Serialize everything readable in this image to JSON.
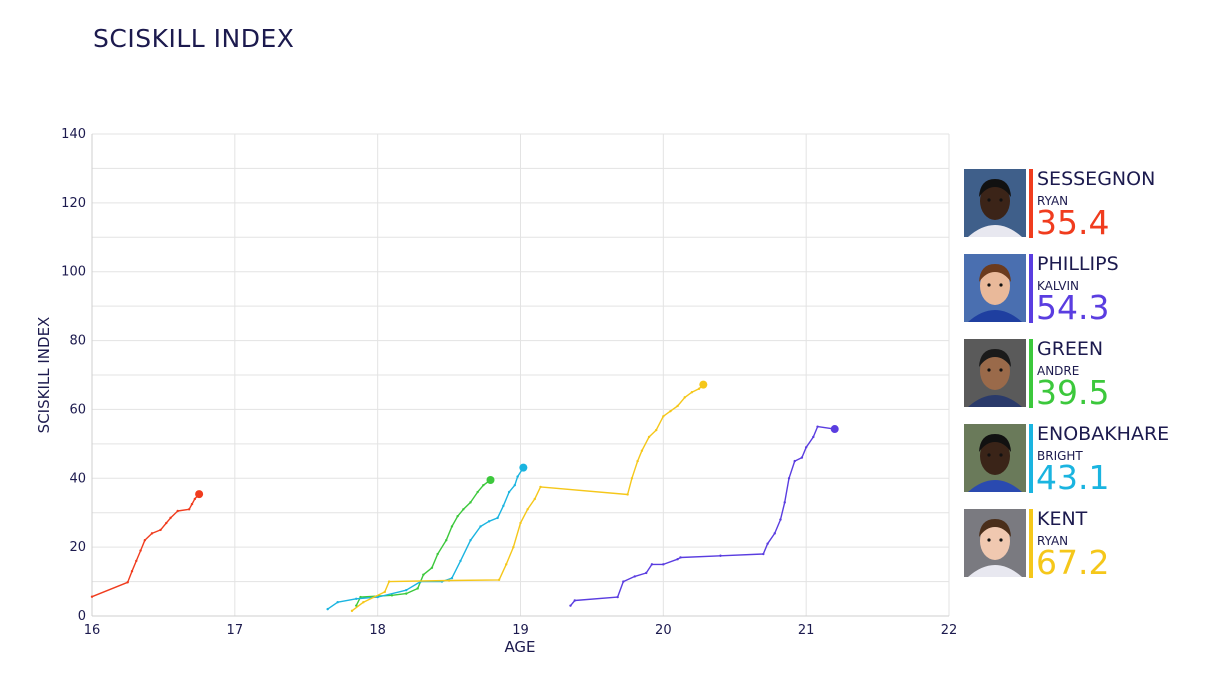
{
  "page": {
    "title": "SCISKILL INDEX"
  },
  "chart_data": {
    "type": "line",
    "title": "SCISKILL INDEX",
    "xlabel": "AGE",
    "ylabel": "SCISKILL INDEX",
    "xlim": [
      16,
      22
    ],
    "ylim": [
      0,
      140
    ],
    "x_ticks": [
      16,
      17,
      18,
      19,
      20,
      21,
      22
    ],
    "y_ticks": [
      0,
      20,
      40,
      60,
      80,
      100,
      120,
      140
    ],
    "grid": true,
    "legend_position": "right",
    "series": [
      {
        "name": "SESSEGNON",
        "color": "#f03c1e",
        "points": [
          [
            16.0,
            5.6
          ],
          [
            16.25,
            9.8
          ],
          [
            16.28,
            13
          ],
          [
            16.31,
            16
          ],
          [
            16.34,
            19
          ],
          [
            16.37,
            22
          ],
          [
            16.42,
            24
          ],
          [
            16.48,
            25
          ],
          [
            16.52,
            27
          ],
          [
            16.55,
            28.5
          ],
          [
            16.6,
            30.5
          ],
          [
            16.68,
            31
          ],
          [
            16.7,
            32.5
          ],
          [
            16.72,
            34
          ],
          [
            16.75,
            35.4
          ]
        ]
      },
      {
        "name": "PHILLIPS",
        "color": "#5a3de0",
        "points": [
          [
            19.35,
            3
          ],
          [
            19.38,
            4.5
          ],
          [
            19.68,
            5.5
          ],
          [
            19.72,
            10
          ],
          [
            19.8,
            11.5
          ],
          [
            19.88,
            12.5
          ],
          [
            19.92,
            15
          ],
          [
            20.0,
            15
          ],
          [
            20.1,
            16.5
          ],
          [
            20.12,
            17
          ],
          [
            20.4,
            17.5
          ],
          [
            20.7,
            18
          ],
          [
            20.73,
            21
          ],
          [
            20.78,
            24
          ],
          [
            20.82,
            28
          ],
          [
            20.85,
            33
          ],
          [
            20.88,
            40
          ],
          [
            20.92,
            45
          ],
          [
            20.97,
            46
          ],
          [
            21.0,
            49
          ],
          [
            21.05,
            52
          ],
          [
            21.08,
            55
          ],
          [
            21.2,
            54.3
          ]
        ]
      },
      {
        "name": "GREEN",
        "color": "#3cc83c",
        "points": [
          [
            17.85,
            3
          ],
          [
            17.88,
            5.5
          ],
          [
            18.1,
            6
          ],
          [
            18.2,
            6.5
          ],
          [
            18.28,
            8
          ],
          [
            18.32,
            12
          ],
          [
            18.38,
            14
          ],
          [
            18.42,
            18
          ],
          [
            18.48,
            22
          ],
          [
            18.52,
            26
          ],
          [
            18.56,
            29
          ],
          [
            18.6,
            31
          ],
          [
            18.65,
            33
          ],
          [
            18.7,
            36
          ],
          [
            18.74,
            38
          ],
          [
            18.79,
            39.5
          ]
        ]
      },
      {
        "name": "ENOBAKHARE",
        "color": "#1ab4e0",
        "points": [
          [
            17.65,
            2
          ],
          [
            17.72,
            4
          ],
          [
            17.85,
            5
          ],
          [
            18.0,
            5.5
          ],
          [
            18.2,
            7.5
          ],
          [
            18.3,
            10
          ],
          [
            18.45,
            10
          ],
          [
            18.52,
            11
          ],
          [
            18.58,
            16
          ],
          [
            18.65,
            22
          ],
          [
            18.72,
            26
          ],
          [
            18.78,
            27.5
          ],
          [
            18.84,
            28.5
          ],
          [
            18.88,
            32
          ],
          [
            18.92,
            36
          ],
          [
            18.96,
            38
          ],
          [
            18.98,
            40.5
          ],
          [
            19.02,
            43.1
          ]
        ]
      },
      {
        "name": "KENT",
        "color": "#f5c71a",
        "points": [
          [
            17.82,
            1.5
          ],
          [
            17.9,
            4
          ],
          [
            18.05,
            7
          ],
          [
            18.08,
            10
          ],
          [
            18.5,
            10.3
          ],
          [
            18.85,
            10.5
          ],
          [
            18.9,
            15
          ],
          [
            18.95,
            20
          ],
          [
            19.0,
            27
          ],
          [
            19.05,
            31
          ],
          [
            19.1,
            34
          ],
          [
            19.14,
            37.5
          ],
          [
            19.75,
            35.3
          ],
          [
            19.78,
            40
          ],
          [
            19.82,
            45
          ],
          [
            19.85,
            48
          ],
          [
            19.9,
            52
          ],
          [
            19.95,
            54
          ],
          [
            20.0,
            58
          ],
          [
            20.05,
            59.5
          ],
          [
            20.1,
            61
          ],
          [
            20.15,
            63.5
          ],
          [
            20.2,
            65
          ],
          [
            20.25,
            66
          ],
          [
            20.28,
            67.2
          ]
        ]
      }
    ]
  },
  "legend": [
    {
      "last_name": "SESSEGNON",
      "first_name": "RYAN",
      "score": "35.4",
      "color": "#f03c1e",
      "icon": "player-photo-icon"
    },
    {
      "last_name": "PHILLIPS",
      "first_name": "KALVIN",
      "score": "54.3",
      "color": "#5a3de0",
      "icon": "player-photo-icon"
    },
    {
      "last_name": "GREEN",
      "first_name": "ANDRE",
      "score": "39.5",
      "color": "#3cc83c",
      "icon": "player-photo-icon"
    },
    {
      "last_name": "ENOBAKHARE",
      "first_name": "BRIGHT",
      "score": "43.1",
      "color": "#1ab4e0",
      "icon": "player-photo-icon"
    },
    {
      "last_name": "KENT",
      "first_name": "RYAN",
      "score": "67.2",
      "color": "#f5c71a",
      "icon": "player-photo-icon"
    }
  ]
}
